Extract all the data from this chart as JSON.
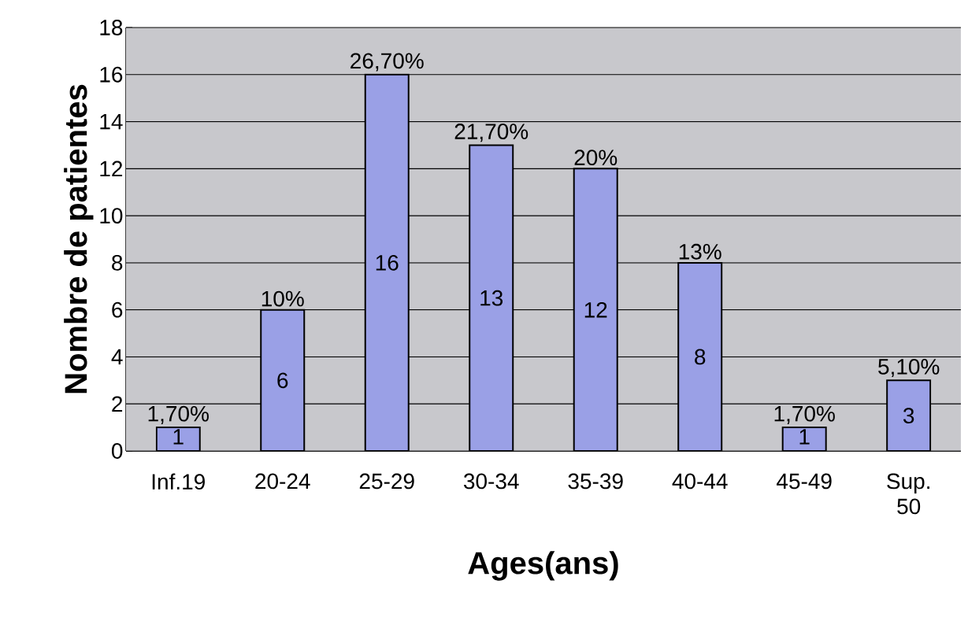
{
  "chart_data": {
    "type": "bar",
    "xlabel": "Ages(ans)",
    "ylabel": "Nombre de patientes",
    "categories": [
      "Inf.19",
      "20-24",
      "25-29",
      "30-34",
      "35-39",
      "40-44",
      "45-49",
      "Sup. 50"
    ],
    "values": [
      1,
      6,
      16,
      13,
      12,
      8,
      1,
      3
    ],
    "color": "#9aa0e6",
    "data_labels": true,
    "ylim": [
      0,
      18
    ],
    "yticks": [
      0,
      2,
      4,
      6,
      8,
      10,
      12,
      14,
      16,
      18
    ],
    "grid": "y",
    "annotations": [
      {
        "text": "1,70%",
        "x": "Inf.19",
        "y": 1
      },
      {
        "text": "10%",
        "x": "20-24",
        "y": 6
      },
      {
        "text": "26,70%",
        "x": "25-29",
        "y": 16
      },
      {
        "text": "21,70%",
        "x": "30-34",
        "y": 13
      },
      {
        "text": "20%",
        "x": "35-39",
        "y": 12
      },
      {
        "text": "13%",
        "x": "40-44",
        "y": 8
      },
      {
        "text": "1,70%",
        "x": "45-49",
        "y": 1
      },
      {
        "text": "5,10%",
        "x": "Sup. 50",
        "y": 3
      }
    ]
  }
}
